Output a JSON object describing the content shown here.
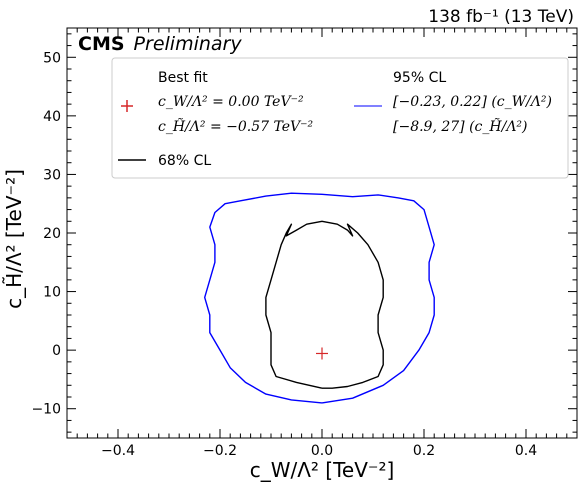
{
  "chart_data": {
    "type": "line",
    "title": "",
    "lumi_label": "138 fb⁻¹ (13 TeV)",
    "experiment": "CMS",
    "experiment_tag": "Preliminary",
    "xlabel": "c_W/Λ² [TeV⁻²]",
    "ylabel": "c_H̃/Λ² [TeV⁻²]",
    "xlim": [
      -0.5,
      0.5
    ],
    "ylim": [
      -15,
      55
    ],
    "xticks": [
      -0.4,
      -0.2,
      0.0,
      0.2,
      0.4
    ],
    "xtick_labels": [
      "−0.4",
      "−0.2",
      "0.0",
      "0.2",
      "0.4"
    ],
    "yticks": [
      -10,
      0,
      10,
      20,
      30,
      40,
      50
    ],
    "ytick_labels": [
      "−10",
      "0",
      "10",
      "20",
      "30",
      "40",
      "50"
    ],
    "grid": false,
    "legend": {
      "placement": "top",
      "best_fit_title": "Best fit",
      "best_fit_cw": "c_W/Λ² = 0.00 TeV⁻²",
      "best_fit_ch": "c_H̃/Λ² = −0.57 TeV⁻²",
      "cl68_label": "68% CL",
      "cl95_title": "95% CL",
      "cl95_cw": "[−0.23, 0.22] (c_W/Λ²)",
      "cl95_ch": "[−8.9, 27] (c_H̃/Λ²)"
    },
    "best_fit": {
      "x": 0.0,
      "y": -0.57,
      "color": "#d62728"
    },
    "series": [
      {
        "name": "68% CL",
        "color": "#000000",
        "x": [
          0.0,
          -0.05,
          -0.09,
          -0.1,
          -0.1,
          -0.1,
          -0.11,
          -0.11,
          -0.1,
          -0.09,
          -0.08,
          -0.07,
          -0.06,
          -0.07,
          -0.05,
          -0.03,
          0.0,
          0.03,
          0.05,
          0.06,
          0.05,
          0.07,
          0.09,
          0.11,
          0.12,
          0.12,
          0.11,
          0.11,
          0.12,
          0.12,
          0.11,
          0.08,
          0.05,
          0.02,
          0.0
        ],
        "y": [
          -6.5,
          -5.5,
          -4.5,
          -2.5,
          0.0,
          3.0,
          6.0,
          9.0,
          12.0,
          15.0,
          18.0,
          20.0,
          21.5,
          19.5,
          20.5,
          21.5,
          22.0,
          21.5,
          20.5,
          19.5,
          21.5,
          20.0,
          18.0,
          15.0,
          12.0,
          9.0,
          6.0,
          3.0,
          0.0,
          -2.5,
          -4.5,
          -5.5,
          -6.2,
          -6.5,
          -6.5
        ]
      },
      {
        "name": "95% CL",
        "color": "#0000ff",
        "x": [
          0.0,
          -0.06,
          -0.11,
          -0.15,
          -0.18,
          -0.2,
          -0.22,
          -0.22,
          -0.23,
          -0.22,
          -0.21,
          -0.21,
          -0.22,
          -0.21,
          -0.19,
          -0.16,
          -0.11,
          -0.06,
          0.0,
          0.06,
          0.11,
          0.15,
          0.18,
          0.2,
          0.21,
          0.22,
          0.21,
          0.21,
          0.22,
          0.22,
          0.21,
          0.19,
          0.16,
          0.12,
          0.06,
          0.0
        ],
        "y": [
          -9.0,
          -8.5,
          -7.5,
          -5.5,
          -3.0,
          0.0,
          3.0,
          6.0,
          9.0,
          12.0,
          15.0,
          18.0,
          21.0,
          23.5,
          25.0,
          25.5,
          26.3,
          26.8,
          26.6,
          26.2,
          26.5,
          26.0,
          25.5,
          24.0,
          21.0,
          18.0,
          15.0,
          12.0,
          9.0,
          6.0,
          3.0,
          0.0,
          -3.5,
          -6.0,
          -8.2,
          -9.0
        ]
      }
    ]
  }
}
